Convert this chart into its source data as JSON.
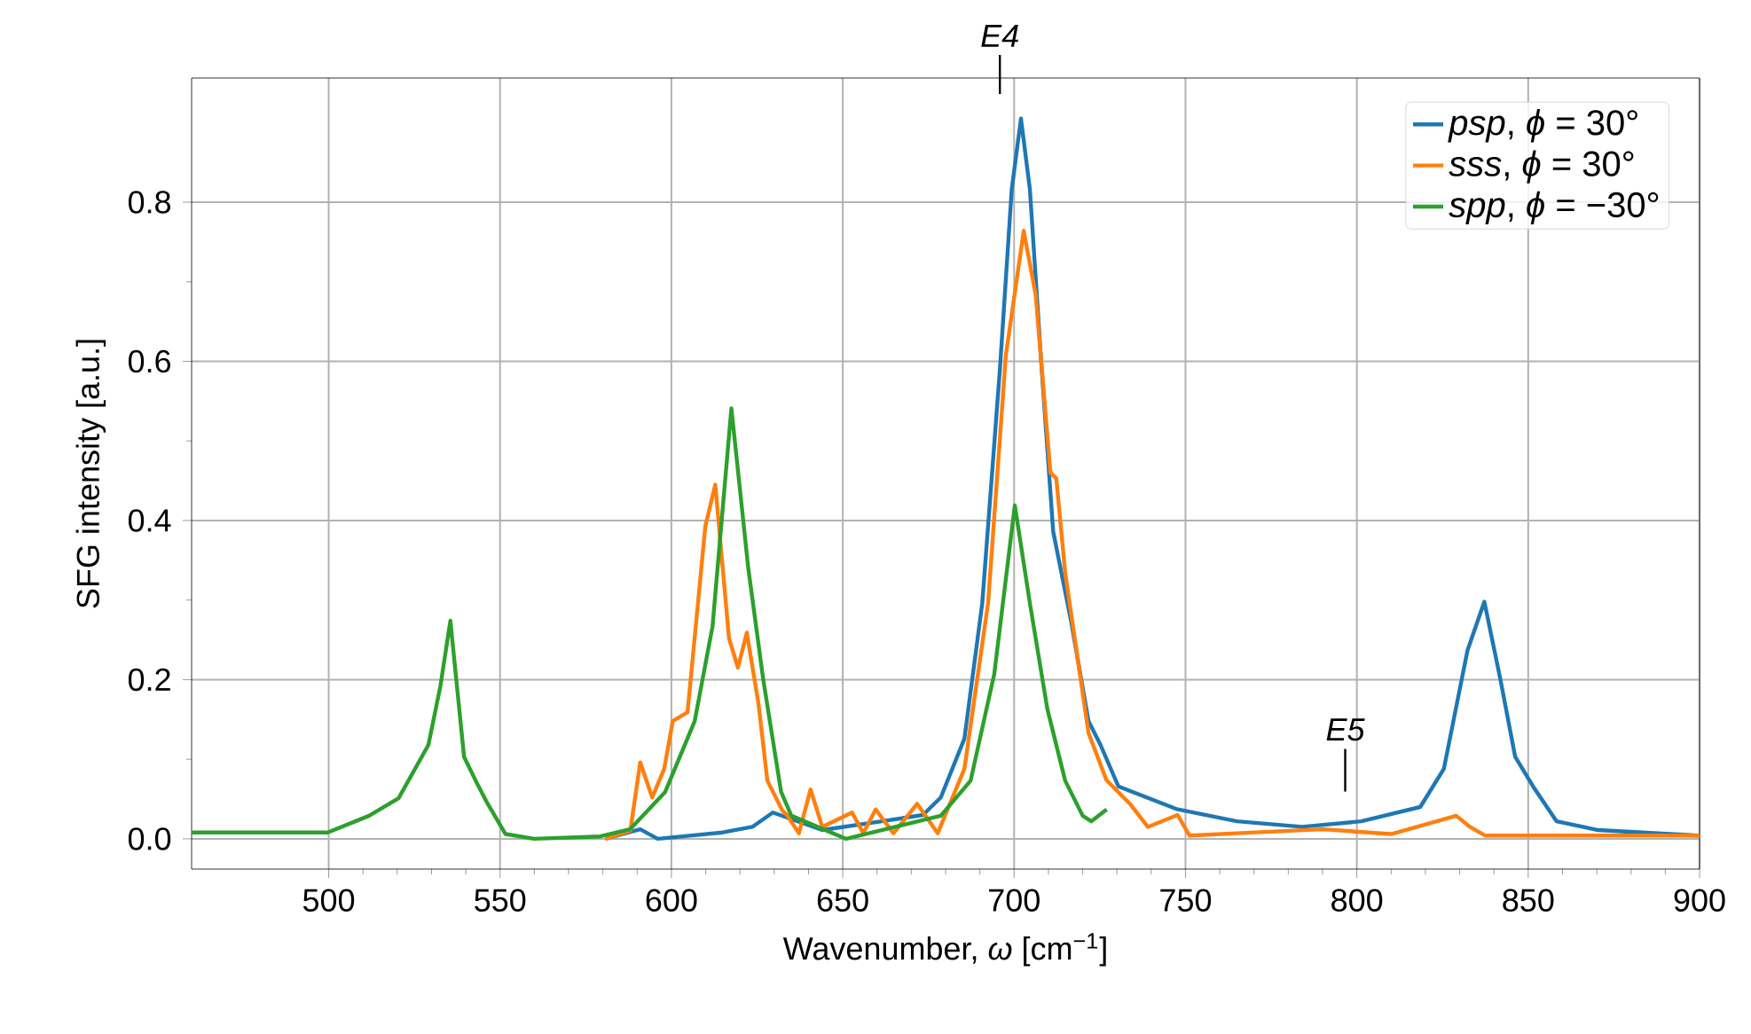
{
  "chart_data": {
    "type": "line",
    "xlabel": "Wavenumber, *ω* [cm$^{−1}$]",
    "ylabel": "SFG intensity [a.u.]",
    "xlim": [
      460,
      900
    ],
    "ylim": [
      -0.038,
      0.956
    ],
    "xticks": [
      500,
      550,
      600,
      650,
      700,
      750,
      800,
      850,
      900
    ],
    "yticks": [
      {
        "value": 0,
        "label": "0.0"
      },
      {
        "value": 0.2,
        "label": "0.2"
      },
      {
        "value": 0.4,
        "label": "0.4"
      },
      {
        "value": 0.6,
        "label": "0.6"
      },
      {
        "value": 0.8,
        "label": "0.8"
      }
    ],
    "grid": true,
    "legend": "top right",
    "line_style": "solid",
    "marker": "none",
    "annotations": [
      "E4",
      "E5"
    ],
    "series": [
      {
        "name": "*psp*, *ϕ* = 30°",
        "color": "#1f77b4",
        "x": [
          580.7,
          590.9,
          596,
          615,
          623.6,
          629.6,
          644,
          661.4,
          673.4,
          678.6,
          685.5,
          690.7,
          695.9,
          699.3,
          702,
          704.6,
          708,
          711.4,
          716.6,
          721.7,
          725.2,
          730.4,
          747.7,
          765,
          784,
          801.3,
          818.5,
          825.4,
          832.3,
          837.2,
          841.9,
          846.2,
          851.4,
          858.3,
          870.4,
          899.7
        ],
        "values": [
          0.0,
          0.012,
          0.0,
          0.008,
          0.015,
          0.033,
          0.011,
          0.022,
          0.03,
          0.052,
          0.126,
          0.296,
          0.593,
          0.816,
          0.905,
          0.816,
          0.593,
          0.386,
          0.274,
          0.148,
          0.118,
          0.066,
          0.037,
          0.022,
          0.015,
          0.022,
          0.04,
          0.088,
          0.237,
          0.298,
          0.2,
          0.103,
          0.066,
          0.022,
          0.011,
          0.004
        ]
      },
      {
        "name": "*sss*, *ϕ* = 30°",
        "color": "#ff7f0e",
        "x": [
          580.7,
          588,
          590.9,
          594.4,
          597.9,
          600.4,
          604.7,
          609.9,
          612.8,
          616.8,
          619.4,
          622,
          625.4,
          628,
          632.3,
          633.7,
          637.2,
          640.6,
          644,
          652.7,
          656,
          659.6,
          664.8,
          671.7,
          677.7,
          685.5,
          692.4,
          697.6,
          702.8,
          706.3,
          710.6,
          712.3,
          714.9,
          721.7,
          726.9,
          733.8,
          739,
          747.7,
          751.2,
          765,
          790,
          810,
          829,
          833,
          837.5,
          860,
          900
        ],
        "values": [
          0.0,
          0.01,
          0.096,
          0.052,
          0.088,
          0.148,
          0.159,
          0.393,
          0.445,
          0.252,
          0.215,
          0.259,
          0.17,
          0.073,
          0.036,
          0.03,
          0.007,
          0.062,
          0.015,
          0.033,
          0.007,
          0.037,
          0.007,
          0.044,
          0.007,
          0.088,
          0.296,
          0.608,
          0.764,
          0.683,
          0.46,
          0.453,
          0.334,
          0.133,
          0.074,
          0.044,
          0.015,
          0.03,
          0.004,
          0.007,
          0.012,
          0.006,
          0.029,
          0.015,
          0.004,
          0.004,
          0.004
        ]
      },
      {
        "name": "*spp*, *ϕ* = −30°",
        "color": "#2ca02c",
        "x": [
          460,
          499.7,
          511.8,
          520.4,
          529.1,
          532.6,
          535.5,
          539.5,
          542.9,
          546.4,
          551.6,
          560,
          579.2,
          587.9,
          598.2,
          606.8,
          612,
          617.5,
          622.4,
          626.8,
          632,
          635,
          651,
          678.6,
          687.3,
          694.2,
          700.2,
          704.6,
          709.7,
          714.9,
          720,
          722.5,
          727
        ],
        "values": [
          0.008,
          0.008,
          0.029,
          0.051,
          0.118,
          0.192,
          0.274,
          0.103,
          0.073,
          0.044,
          0.006,
          0.0,
          0.003,
          0.012,
          0.059,
          0.148,
          0.267,
          0.541,
          0.341,
          0.2,
          0.059,
          0.029,
          0.0,
          0.029,
          0.073,
          0.207,
          0.419,
          0.296,
          0.163,
          0.073,
          0.029,
          0.022,
          0.037
        ]
      }
    ]
  }
}
